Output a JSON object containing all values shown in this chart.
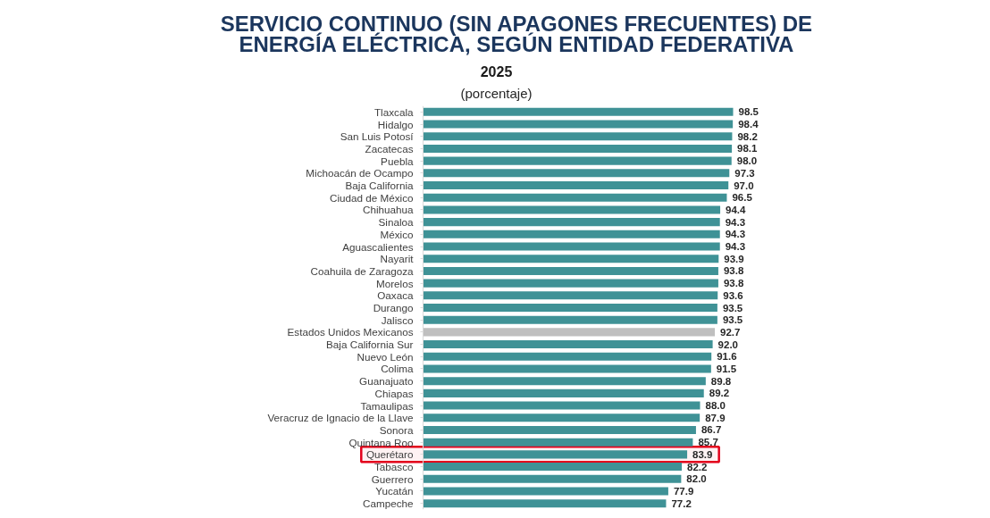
{
  "chart_data": {
    "type": "bar",
    "orientation": "horizontal",
    "title": "SERVICIO CONTINUO (SIN APAGONES FRECUENTES) DE ENERGÍA ELÉCTRICA, SEGÚN ENTIDAD FEDERATIVA",
    "subtitle": "2025",
    "annotations": [
      "(porcentaje)"
    ],
    "categories": [
      "Tlaxcala",
      "Hidalgo",
      "San Luis Potosí",
      "Zacatecas",
      "Puebla",
      "Michoacán de Ocampo",
      "Baja California",
      "Ciudad de México",
      "Chihuahua",
      "Sinaloa",
      "México",
      "Aguascalientes",
      "Nayarit",
      "Coahuila de Zaragoza",
      "Morelos",
      "Oaxaca",
      "Durango",
      "Jalisco",
      "Estados Unidos Mexicanos",
      "Baja California Sur",
      "Nuevo León",
      "Colima",
      "Guanajuato",
      "Chiapas",
      "Tamaulipas",
      "Veracruz de Ignacio de la Llave",
      "Sonora",
      "Quintana Roo",
      "Querétaro",
      "Tabasco",
      "Guerrero",
      "Yucatán",
      "Campeche"
    ],
    "values": [
      98.5,
      98.4,
      98.2,
      98.1,
      98.0,
      97.3,
      97.0,
      96.5,
      94.4,
      94.3,
      94.3,
      94.3,
      93.9,
      93.8,
      93.8,
      93.6,
      93.5,
      93.5,
      92.7,
      92.0,
      91.6,
      91.5,
      89.8,
      89.2,
      88.0,
      87.9,
      86.7,
      85.7,
      83.9,
      82.2,
      82.0,
      77.9,
      77.2
    ],
    "value_labels": [
      "98.5",
      "98.4",
      "98.2",
      "98.1",
      "98.0",
      "97.3",
      "97.0",
      "96.5",
      "94.4",
      "94.3",
      "94.3",
      "94.3",
      "93.9",
      "93.8",
      "93.8",
      "93.6",
      "93.5",
      "93.5",
      "92.7",
      "92.0",
      "91.6",
      "91.5",
      "89.8",
      "89.2",
      "88.0",
      "87.9",
      "86.7",
      "85.7",
      "83.9",
      "82.2",
      "82.0",
      "77.9",
      "77.2"
    ],
    "colors": [
      "#3f9296",
      "#3f9296",
      "#3f9296",
      "#3f9296",
      "#3f9296",
      "#3f9296",
      "#3f9296",
      "#3f9296",
      "#3f9296",
      "#3f9296",
      "#3f9296",
      "#3f9296",
      "#3f9296",
      "#3f9296",
      "#3f9296",
      "#3f9296",
      "#3f9296",
      "#3f9296",
      "#bfbfbf",
      "#3f9296",
      "#3f9296",
      "#3f9296",
      "#3f9296",
      "#3f9296",
      "#3f9296",
      "#3f9296",
      "#3f9296",
      "#3f9296",
      "#3f9296",
      "#3f9296",
      "#3f9296",
      "#3f9296",
      "#3f9296"
    ],
    "bands": [
      {
        "axis": "y",
        "from": "Querétaro",
        "to": "Querétaro",
        "color": "#e3001b"
      }
    ],
    "tick_labels": "y"
  }
}
